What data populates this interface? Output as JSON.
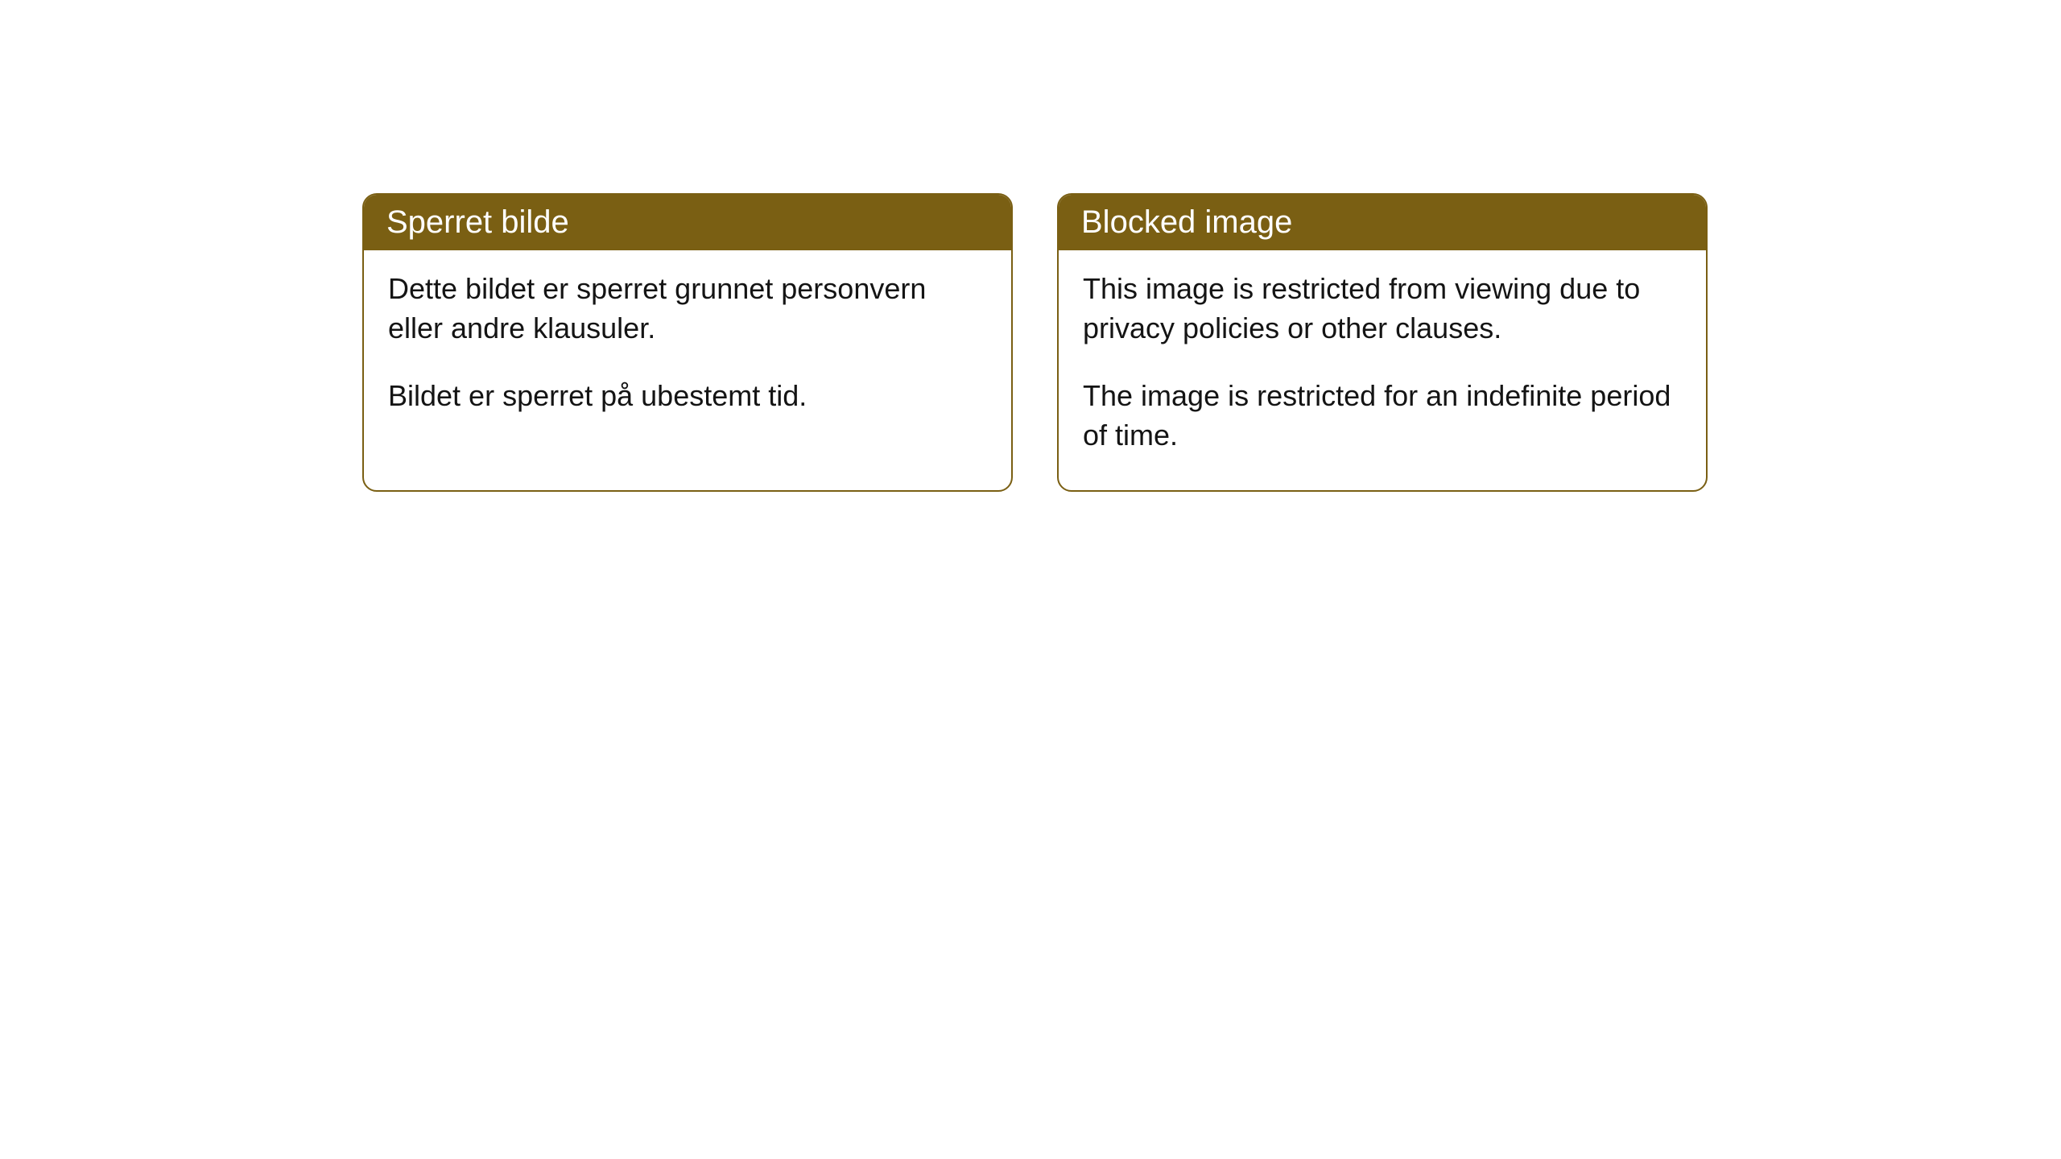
{
  "cards": [
    {
      "title": "Sperret bilde",
      "paragraph1": "Dette bildet er sperret grunnet personvern eller andre klausuler.",
      "paragraph2": "Bildet er sperret på ubestemt tid."
    },
    {
      "title": "Blocked image",
      "paragraph1": "This image is restricted from viewing due to privacy policies or other clauses.",
      "paragraph2": "The image is restricted for an indefinite period of time."
    }
  ],
  "styling": {
    "header_background": "#7a5f13",
    "header_text_color": "#ffffff",
    "border_color": "#7a5f13",
    "body_background": "#ffffff",
    "body_text_color": "#141414",
    "border_radius": 18,
    "header_fontsize": 40,
    "body_fontsize": 36
  }
}
